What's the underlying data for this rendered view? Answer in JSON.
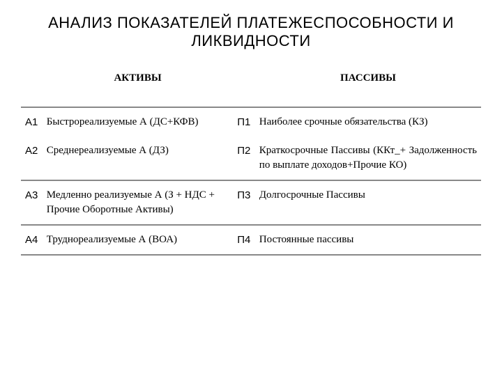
{
  "title": "АНАЛИЗ ПОКАЗАТЕЛЕЙ ПЛАТЕЖЕСПОСОБНОСТИ И ЛИКВИДНОСТИ",
  "headers": {
    "assets": "АКТИВЫ",
    "liabilities": "ПАССИВЫ"
  },
  "rows": [
    {
      "a_code": "А1",
      "a_desc": "Быстрореализуемые А (ДС+КФВ)",
      "p_code": "П1",
      "p_desc": "Наиболее срочные обязательства (КЗ)"
    },
    {
      "a_code": "А2",
      "a_desc": "Среднереализуемые А (ДЗ)",
      "p_code": "П2",
      "p_desc": "Краткосрочные Пассивы (ККт_+ Задолженность по выплате доходов+Прочие КО)"
    },
    {
      "a_code": "А3",
      "a_desc": "Медленно реализуемые А (З + НДС + Прочие Оборотные Активы)",
      "p_code": "П3",
      "p_desc": "Долгосрочные Пассивы"
    },
    {
      "a_code": "А4",
      "a_desc": "Труднореализуемые А (ВОА)",
      "p_code": "П4",
      "p_desc": "Постоянные пассивы"
    }
  ],
  "styling": {
    "background_color": "#ffffff",
    "text_color": "#000000",
    "border_color": "#888888",
    "title_fontsize": 22,
    "body_fontsize": 15,
    "font_family_title": "Arial",
    "font_family_body": "Times New Roman"
  }
}
